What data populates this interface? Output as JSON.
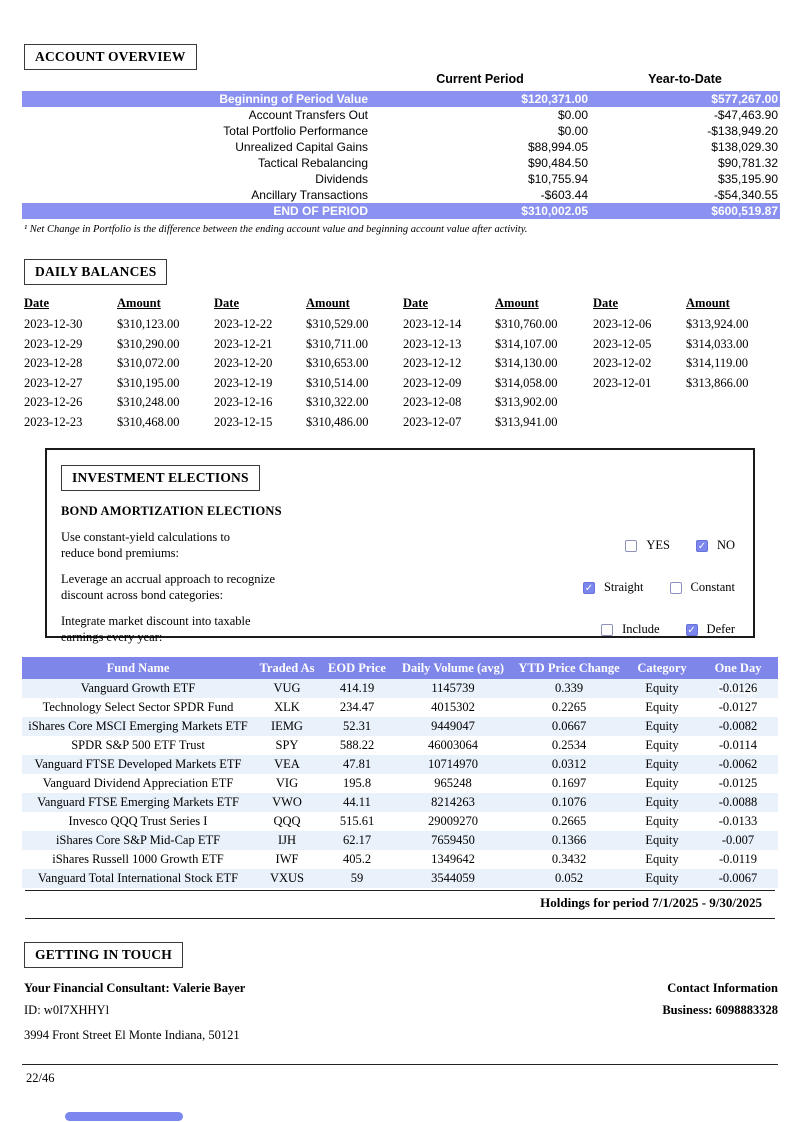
{
  "colors": {
    "accent_row": "#8a91f0",
    "table_header": "#7e86e9",
    "row_tint": "#e9f1fa",
    "checkbox_checked": "#7b86ee"
  },
  "account_overview": {
    "title": "ACCOUNT OVERVIEW",
    "col_current": "Current Period",
    "col_ytd": "Year-to-Date",
    "rows": [
      {
        "label": "Beginning of Period Value",
        "current": "$120,371.00",
        "ytd": "$577,267.00",
        "highlight": true
      },
      {
        "label": "Account Transfers Out",
        "current": "$0.00",
        "ytd": "-$47,463.90",
        "highlight": false
      },
      {
        "label": "Total Portfolio Performance",
        "current": "$0.00",
        "ytd": "-$138,949.20",
        "highlight": false
      },
      {
        "label": "Unrealized Capital Gains",
        "current": "$88,994.05",
        "ytd": "$138,029.30",
        "highlight": false
      },
      {
        "label": "Tactical Rebalancing",
        "current": "$90,484.50",
        "ytd": "$90,781.32",
        "highlight": false
      },
      {
        "label": "Dividends",
        "current": "$10,755.94",
        "ytd": "$35,195.90",
        "highlight": false
      },
      {
        "label": "Ancillary Transactions",
        "current": "-$603.44",
        "ytd": "-$54,340.55",
        "highlight": false
      },
      {
        "label": "END OF PERIOD",
        "current": "$310,002.05",
        "ytd": "$600,519.87",
        "highlight": true
      }
    ],
    "footnote": "¹ Net Change in Portfolio is the difference between the ending account value and beginning account value after activity."
  },
  "daily_balances": {
    "title": "DAILY BALANCES",
    "date_header": "Date",
    "amount_header": "Amount",
    "columns": [
      [
        [
          "2023-12-30",
          "$310,123.00"
        ],
        [
          "2023-12-29",
          "$310,290.00"
        ],
        [
          "2023-12-28",
          "$310,072.00"
        ],
        [
          "2023-12-27",
          "$310,195.00"
        ],
        [
          "2023-12-26",
          "$310,248.00"
        ],
        [
          "2023-12-23",
          "$310,468.00"
        ]
      ],
      [
        [
          "2023-12-22",
          "$310,529.00"
        ],
        [
          "2023-12-21",
          "$310,711.00"
        ],
        [
          "2023-12-20",
          "$310,653.00"
        ],
        [
          "2023-12-19",
          "$310,514.00"
        ],
        [
          "2023-12-16",
          "$310,322.00"
        ],
        [
          "2023-12-15",
          "$310,486.00"
        ]
      ],
      [
        [
          "2023-12-14",
          "$310,760.00"
        ],
        [
          "2023-12-13",
          "$314,107.00"
        ],
        [
          "2023-12-12",
          "$314,130.00"
        ],
        [
          "2023-12-09",
          "$314,058.00"
        ],
        [
          "2023-12-08",
          "$313,902.00"
        ],
        [
          "2023-12-07",
          "$313,941.00"
        ]
      ],
      [
        [
          "2023-12-06",
          "$313,924.00"
        ],
        [
          "2023-12-05",
          "$314,033.00"
        ],
        [
          "2023-12-02",
          "$314,119.00"
        ],
        [
          "2023-12-01",
          "$313,866.00"
        ]
      ]
    ]
  },
  "investment_elections": {
    "title": "INVESTMENT ELECTIONS",
    "subtitle": "BOND AMORTIZATION ELECTIONS",
    "questions": [
      {
        "lines": [
          "Use constant-yield calculations to",
          "reduce bond premiums:"
        ],
        "options": [
          {
            "label": "YES",
            "checked": false
          },
          {
            "label": "NO",
            "checked": true
          }
        ]
      },
      {
        "lines": [
          "Leverage an accrual approach to recognize",
          "discount across bond categories:"
        ],
        "options": [
          {
            "label": "Straight",
            "checked": true
          },
          {
            "label": "Constant",
            "checked": false
          }
        ]
      },
      {
        "lines": [
          "Integrate market discount into taxable",
          "earnings every year:"
        ],
        "options": [
          {
            "label": "Include",
            "checked": false
          },
          {
            "label": "Defer",
            "checked": true
          }
        ]
      }
    ]
  },
  "holdings": {
    "headers": [
      "Fund Name",
      "Traded As",
      "EOD Price",
      "Daily Volume (avg)",
      "YTD Price Change",
      "Category",
      "One Day Change"
    ],
    "rows": [
      [
        "Vanguard Growth ETF",
        "VUG",
        "414.19",
        "1145739",
        "0.339",
        "Equity",
        "-0.0126"
      ],
      [
        "Technology Select Sector SPDR Fund",
        "XLK",
        "234.47",
        "4015302",
        "0.2265",
        "Equity",
        "-0.0127"
      ],
      [
        "iShares Core MSCI Emerging Markets ETF",
        "IEMG",
        "52.31",
        "9449047",
        "0.0667",
        "Equity",
        "-0.0082"
      ],
      [
        "SPDR S&P 500 ETF Trust",
        "SPY",
        "588.22",
        "46003064",
        "0.2534",
        "Equity",
        "-0.0114"
      ],
      [
        "Vanguard FTSE Developed Markets ETF",
        "VEA",
        "47.81",
        "10714970",
        "0.0312",
        "Equity",
        "-0.0062"
      ],
      [
        "Vanguard Dividend Appreciation ETF",
        "VIG",
        "195.8",
        "965248",
        "0.1697",
        "Equity",
        "-0.0125"
      ],
      [
        "Vanguard FTSE Emerging Markets ETF",
        "VWO",
        "44.11",
        "8214263",
        "0.1076",
        "Equity",
        "-0.0088"
      ],
      [
        "Invesco QQQ Trust Series I",
        "QQQ",
        "515.61",
        "29009270",
        "0.2665",
        "Equity",
        "-0.0133"
      ],
      [
        "iShares Core S&P Mid-Cap ETF",
        "IJH",
        "62.17",
        "7659450",
        "0.1366",
        "Equity",
        "-0.007"
      ],
      [
        "iShares Russell 1000 Growth ETF",
        "IWF",
        "405.2",
        "1349642",
        "0.3432",
        "Equity",
        "-0.0119"
      ],
      [
        "Vanguard Total International Stock ETF",
        "VXUS",
        "59",
        "3544059",
        "0.052",
        "Equity",
        "-0.0067"
      ]
    ],
    "period_note": "Holdings for period 7/1/2025 - 9/30/2025"
  },
  "getting_in_touch": {
    "title": "GETTING IN TOUCH",
    "consultant": "Your Financial Consultant: Valerie Bayer",
    "consultant_id": "ID: w0I7XHHYl",
    "address": "3994 Front Street El Monte Indiana, 50121",
    "contact_heading": "Contact Information",
    "business_phone": "Business: 6098883328"
  },
  "footer": {
    "page_number": "22/46"
  }
}
